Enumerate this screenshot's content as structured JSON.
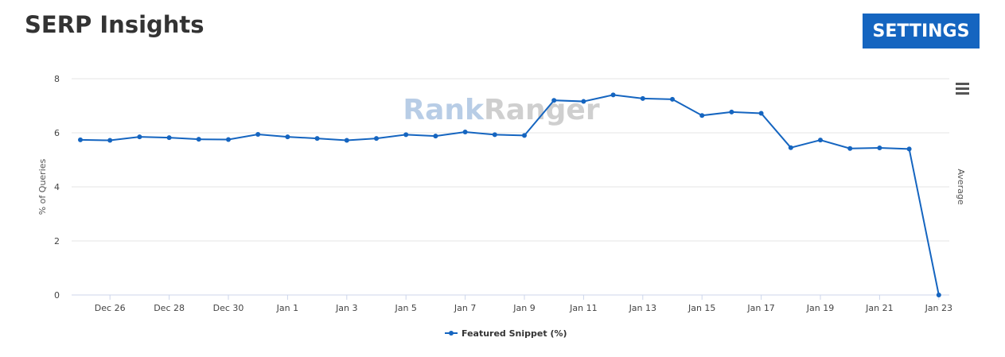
{
  "header": {
    "title": "SERP Insights",
    "settings_label": "SETTINGS"
  },
  "watermark": {
    "part1": "Rank",
    "part2": "Ranger",
    "color1": "#b8cde6",
    "color2": "#cfcfcf"
  },
  "chart_data": {
    "type": "line",
    "title": "",
    "ylabel": "% of Queries",
    "ylabel_right": "Average",
    "ylim": [
      0,
      8
    ],
    "yticks": [
      0,
      2,
      4,
      6,
      8
    ],
    "grid": true,
    "legend_position": "bottom-center",
    "x": [
      "Dec 25",
      "Dec 26",
      "Dec 27",
      "Dec 28",
      "Dec 29",
      "Dec 30",
      "Dec 31",
      "Jan 1",
      "Jan 2",
      "Jan 3",
      "Jan 4",
      "Jan 5",
      "Jan 6",
      "Jan 7",
      "Jan 8",
      "Jan 9",
      "Jan 10",
      "Jan 11",
      "Jan 12",
      "Jan 13",
      "Jan 14",
      "Jan 15",
      "Jan 16",
      "Jan 17",
      "Jan 18",
      "Jan 19",
      "Jan 20",
      "Jan 21",
      "Jan 22",
      "Jan 23"
    ],
    "xtick_labels": [
      "Dec 26",
      "Dec 28",
      "Dec 30",
      "Jan 1",
      "Jan 3",
      "Jan 5",
      "Jan 7",
      "Jan 9",
      "Jan 11",
      "Jan 13",
      "Jan 15",
      "Jan 17",
      "Jan 19",
      "Jan 21",
      "Jan 23"
    ],
    "series": [
      {
        "name": "Featured Snippet (%)",
        "color": "#1565c0",
        "values": [
          5.74,
          5.72,
          5.85,
          5.82,
          5.76,
          5.75,
          5.94,
          5.85,
          5.79,
          5.72,
          5.79,
          5.93,
          5.88,
          6.03,
          5.93,
          5.9,
          7.2,
          7.16,
          7.4,
          7.27,
          7.24,
          6.64,
          6.77,
          6.72,
          5.45,
          5.73,
          5.42,
          5.44,
          5.4,
          0.0
        ]
      }
    ]
  }
}
